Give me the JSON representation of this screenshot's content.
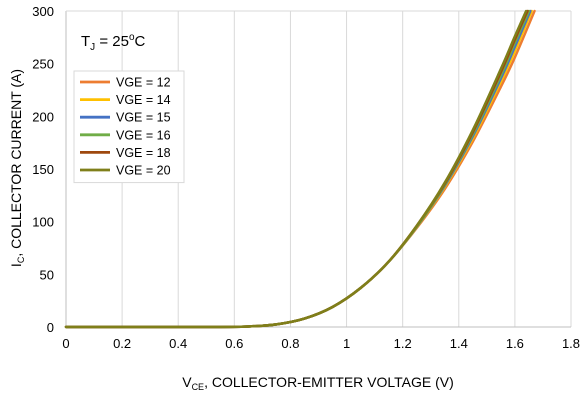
{
  "chart_data": {
    "type": "line",
    "title": "",
    "annotation": {
      "symbol": "T",
      "subscript": "J",
      "equals": " = 25",
      "superscript": "o",
      "unit": "C"
    },
    "xlabel": {
      "symbol": "V",
      "subscript": "CE",
      "text": ", COLLECTOR-EMITTER VOLTAGE (V)"
    },
    "ylabel": {
      "symbol": "I",
      "subscript": "C",
      "text": ", COLLECTOR CURRENT (A)"
    },
    "xlim": [
      0,
      1.8
    ],
    "ylim": [
      0,
      300
    ],
    "x_ticks": [
      0,
      0.2,
      0.4,
      0.6,
      0.8,
      1,
      1.2,
      1.4,
      1.6,
      1.8
    ],
    "y_ticks": [
      0,
      50,
      100,
      150,
      200,
      250,
      300
    ],
    "grid": "vertical",
    "legend_position": "top-left",
    "series": [
      {
        "name": "VGE = 12",
        "color": "#ED7D31",
        "points": [
          [
            0,
            0
          ],
          [
            0.5,
            0
          ],
          [
            0.65,
            0.5
          ],
          [
            0.75,
            2.5
          ],
          [
            0.85,
            8
          ],
          [
            0.95,
            19
          ],
          [
            1.05,
            37
          ],
          [
            1.15,
            62
          ],
          [
            1.25,
            94
          ],
          [
            1.35,
            131
          ],
          [
            1.45,
            176
          ],
          [
            1.55,
            228
          ],
          [
            1.6,
            256
          ],
          [
            1.67,
            300
          ]
        ]
      },
      {
        "name": "VGE = 14",
        "color": "#FFC000",
        "points": [
          [
            0,
            0
          ],
          [
            0.5,
            0
          ],
          [
            0.65,
            0.5
          ],
          [
            0.75,
            2.5
          ],
          [
            0.85,
            8
          ],
          [
            0.95,
            19
          ],
          [
            1.05,
            37
          ],
          [
            1.15,
            62
          ],
          [
            1.25,
            95
          ],
          [
            1.35,
            133
          ],
          [
            1.45,
            179
          ],
          [
            1.55,
            233
          ],
          [
            1.6,
            262
          ],
          [
            1.66,
            300
          ]
        ]
      },
      {
        "name": "VGE = 15",
        "color": "#4472C4",
        "points": [
          [
            0,
            0
          ],
          [
            0.5,
            0
          ],
          [
            0.65,
            0.5
          ],
          [
            0.75,
            2.5
          ],
          [
            0.85,
            8
          ],
          [
            0.95,
            19
          ],
          [
            1.05,
            37
          ],
          [
            1.15,
            62
          ],
          [
            1.25,
            95
          ],
          [
            1.35,
            134
          ],
          [
            1.45,
            181
          ],
          [
            1.55,
            236
          ],
          [
            1.6,
            266
          ],
          [
            1.655,
            300
          ]
        ]
      },
      {
        "name": "VGE = 16",
        "color": "#70AD47",
        "points": [
          [
            0,
            0
          ],
          [
            0.5,
            0
          ],
          [
            0.65,
            0.5
          ],
          [
            0.75,
            2.5
          ],
          [
            0.85,
            8
          ],
          [
            0.95,
            19
          ],
          [
            1.05,
            37
          ],
          [
            1.15,
            62
          ],
          [
            1.25,
            95
          ],
          [
            1.35,
            135
          ],
          [
            1.45,
            183
          ],
          [
            1.55,
            239
          ],
          [
            1.6,
            270
          ],
          [
            1.65,
            300
          ]
        ]
      },
      {
        "name": "VGE = 18",
        "color": "#9E480E",
        "points": [
          [
            0,
            0
          ],
          [
            0.5,
            0
          ],
          [
            0.65,
            0.5
          ],
          [
            0.75,
            2.5
          ],
          [
            0.85,
            8
          ],
          [
            0.95,
            19
          ],
          [
            1.05,
            37
          ],
          [
            1.15,
            62
          ],
          [
            1.25,
            96
          ],
          [
            1.35,
            136
          ],
          [
            1.45,
            185
          ],
          [
            1.55,
            242
          ],
          [
            1.6,
            273
          ],
          [
            1.645,
            300
          ]
        ]
      },
      {
        "name": "VGE = 20",
        "color": "#7F7F1A",
        "points": [
          [
            0,
            0
          ],
          [
            0.5,
            0
          ],
          [
            0.65,
            0.5
          ],
          [
            0.75,
            2.5
          ],
          [
            0.85,
            8
          ],
          [
            0.95,
            19
          ],
          [
            1.05,
            37
          ],
          [
            1.15,
            62
          ],
          [
            1.25,
            96
          ],
          [
            1.35,
            137
          ],
          [
            1.45,
            187
          ],
          [
            1.55,
            245
          ],
          [
            1.6,
            276
          ],
          [
            1.64,
            300
          ]
        ]
      }
    ]
  }
}
